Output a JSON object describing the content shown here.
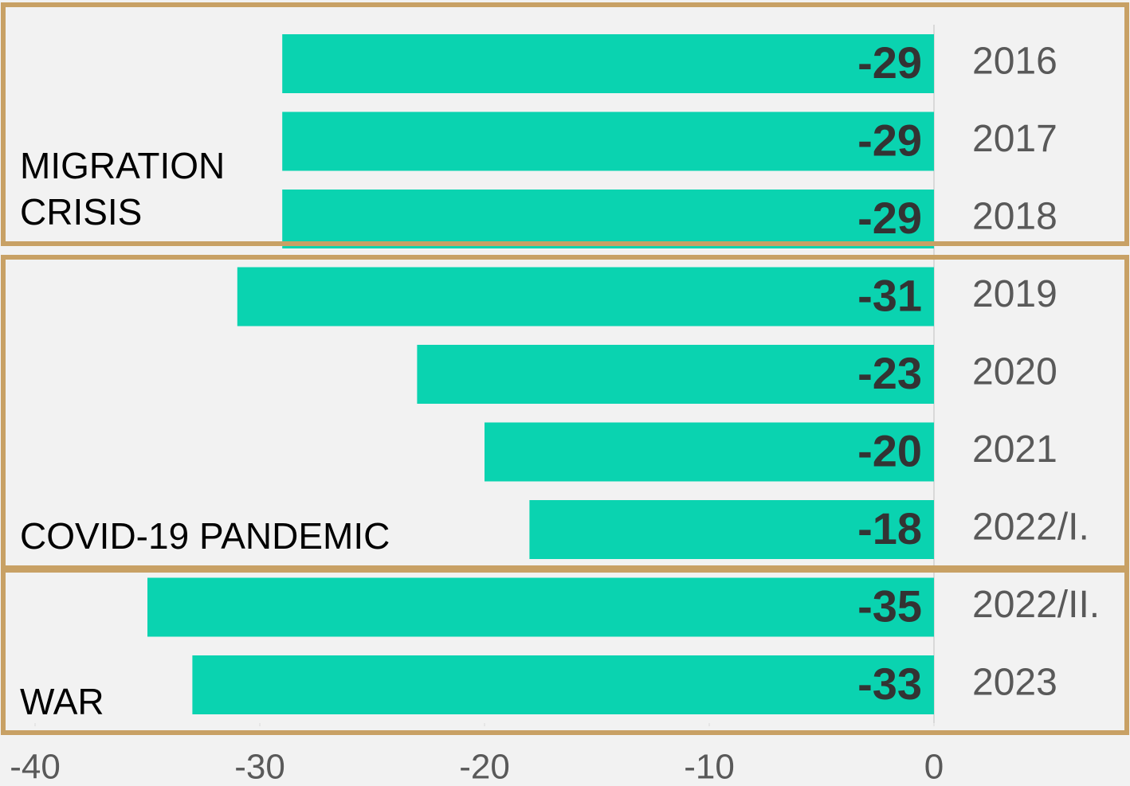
{
  "chart_data": {
    "type": "barh",
    "categories": [
      "2016",
      "2017",
      "2018",
      "2019",
      "2020",
      "2021",
      "2022/I.",
      "2022/II.",
      "2023"
    ],
    "values": [
      -29,
      -29,
      -29,
      -31,
      -23,
      -20,
      -18,
      -35,
      -33
    ],
    "color": "#0ad3b0",
    "xlim": [
      -40,
      0
    ],
    "xticks": [
      -40,
      -30,
      -20,
      -10,
      0
    ],
    "annotations": [
      [
        "MIGRATION",
        "CRISIS"
      ],
      [
        "COVID-19 PANDEMIC"
      ],
      [
        "WAR"
      ]
    ]
  }
}
